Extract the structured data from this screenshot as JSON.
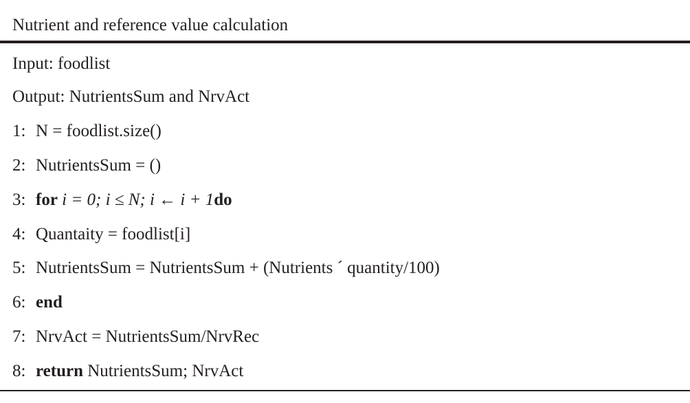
{
  "algorithm": {
    "title": "Nutrient and reference value calculation",
    "input": "Input: foodlist",
    "output": "Output: NutrientsSum and NrvAct",
    "lines": [
      {
        "num": "1:",
        "text": "N = foodlist.size()"
      },
      {
        "num": "2:",
        "text": "NutrientsSum = ()"
      },
      {
        "num": "3:",
        "kw": "for",
        "expr": "i = 0; i ≤ N; i ← i + 1",
        "kw2": "do"
      },
      {
        "num": "4:",
        "text": "Quantaity = foodlist[i]"
      },
      {
        "num": "5:",
        "text": "NutrientsSum = NutrientsSum + (Nutrients ´ quantity/100)"
      },
      {
        "num": "6:",
        "kw": "end"
      },
      {
        "num": "7:",
        "text": "NrvAct = NutrientsSum/NrvRec"
      },
      {
        "num": "8:",
        "kw": "return",
        "text": "NutrientsSum; NrvAct"
      }
    ]
  }
}
